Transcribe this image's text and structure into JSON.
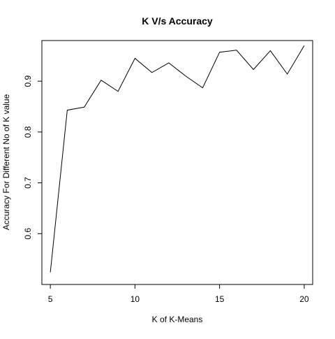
{
  "chart_data": {
    "type": "line",
    "title": "K V/s Accuracy",
    "xlabel": "K of K-Means",
    "ylabel": "Accuracy For Different No of K value",
    "xlim": [
      4.5,
      20.5
    ],
    "ylim": [
      0.5,
      0.98
    ],
    "xticks": [
      5,
      10,
      15,
      20
    ],
    "yticks": [
      0.6,
      0.7,
      0.8,
      0.9
    ],
    "xtick_labels": [
      "5",
      "10",
      "15",
      "20"
    ],
    "ytick_labels": [
      "0.6",
      "0.7",
      "0.8",
      "0.9"
    ],
    "grid": false,
    "line_color": "#000000",
    "x": [
      5,
      6,
      7,
      8,
      9,
      10,
      11,
      12,
      13,
      14,
      15,
      16,
      17,
      18,
      19,
      20
    ],
    "y": [
      0.524,
      0.843,
      0.849,
      0.902,
      0.88,
      0.945,
      0.917,
      0.936,
      0.91,
      0.887,
      0.957,
      0.961,
      0.923,
      0.96,
      0.914,
      0.97
    ]
  }
}
